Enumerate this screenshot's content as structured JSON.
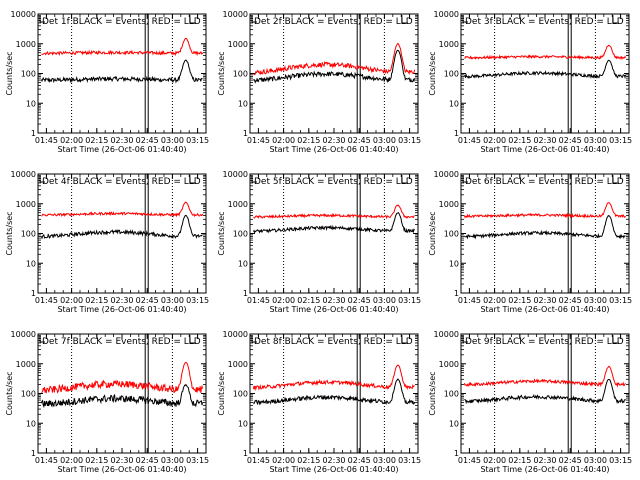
{
  "chart_data": [
    {
      "type": "line",
      "title": "Det 1f BLACK = Events, RED = LLD",
      "xlabel": "Start Time (26-Oct-06 01:40:40)",
      "ylabel": "Counts/sec",
      "yscale": "log",
      "ylim": [
        1,
        10000
      ],
      "xticks": [
        "01:45",
        "02:00",
        "02:15",
        "02:30",
        "02:45",
        "03:00",
        "03:15"
      ],
      "yticks": [
        "1",
        "10",
        "100",
        "1000",
        "10000"
      ],
      "series": [
        {
          "color": "#000000",
          "level": 60,
          "bump": 1.1,
          "peak": 280,
          "noise": 0.07
        },
        {
          "color": "#ff0000",
          "level": 480,
          "bump": 1.06,
          "peak": 1500,
          "noise": 0.05
        }
      ],
      "lines": {
        "dotted": [
          "02:00",
          "03:00"
        ],
        "solid": [
          "02:45"
        ],
        "flare": "03:08"
      }
    },
    {
      "type": "line",
      "title": "Det 2f BLACK = Events, RED = LLD",
      "xlabel": "Start Time (26-Oct-06 01:40:40)",
      "ylabel": "Counts/sec",
      "yscale": "log",
      "ylim": [
        1,
        10000
      ],
      "xticks": [
        "01:45",
        "02:00",
        "02:15",
        "02:30",
        "02:45",
        "03:00",
        "03:15"
      ],
      "yticks": [
        "1",
        "10",
        "100",
        "1000",
        "10000"
      ],
      "series": [
        {
          "color": "#000000",
          "level": 60,
          "bump": 1.6,
          "peak": 600,
          "noise": 0.08
        },
        {
          "color": "#ff0000",
          "level": 110,
          "bump": 1.8,
          "peak": 1000,
          "noise": 0.08
        }
      ],
      "lines": {
        "dotted": [
          "02:00",
          "03:00"
        ],
        "solid": [
          "02:45"
        ],
        "flare": "03:08"
      }
    },
    {
      "type": "line",
      "title": "Det 3f BLACK = Events, RED = LLD",
      "xlabel": "Start Time (26-Oct-06 01:40:40)",
      "ylabel": "Counts/sec",
      "yscale": "log",
      "ylim": [
        1,
        10000
      ],
      "xticks": [
        "01:45",
        "02:00",
        "02:15",
        "02:30",
        "02:45",
        "03:00",
        "03:15"
      ],
      "yticks": [
        "1",
        "10",
        "100",
        "1000",
        "10000"
      ],
      "series": [
        {
          "color": "#000000",
          "level": 80,
          "bump": 1.3,
          "peak": 280,
          "noise": 0.05
        },
        {
          "color": "#ff0000",
          "level": 340,
          "bump": 1.08,
          "peak": 900,
          "noise": 0.04
        }
      ],
      "lines": {
        "dotted": [
          "02:00",
          "03:00"
        ],
        "solid": [
          "02:45"
        ],
        "flare": "03:08"
      }
    },
    {
      "type": "line",
      "title": "Det 4f BLACK = Events, RED = LLD",
      "xlabel": "Start Time (26-Oct-06 01:40:40)",
      "ylabel": "Counts/sec",
      "yscale": "log",
      "ylim": [
        1,
        10000
      ],
      "xticks": [
        "01:45",
        "02:00",
        "02:15",
        "02:30",
        "02:45",
        "03:00",
        "03:15"
      ],
      "yticks": [
        "1",
        "10",
        "100",
        "1000",
        "10000"
      ],
      "series": [
        {
          "color": "#000000",
          "level": 80,
          "bump": 1.4,
          "peak": 400,
          "noise": 0.06
        },
        {
          "color": "#ff0000",
          "level": 420,
          "bump": 1.12,
          "peak": 1100,
          "noise": 0.04
        }
      ],
      "lines": {
        "dotted": [
          "02:00",
          "03:00"
        ],
        "solid": [
          "02:45"
        ],
        "flare": "03:08"
      }
    },
    {
      "type": "line",
      "title": "Det 5f BLACK = Events, RED = LLD",
      "xlabel": "Start Time (26-Oct-06 01:40:40)",
      "ylabel": "Counts/sec",
      "yscale": "log",
      "ylim": [
        1,
        10000
      ],
      "xticks": [
        "01:45",
        "02:00",
        "02:15",
        "02:30",
        "02:45",
        "03:00",
        "03:15"
      ],
      "yticks": [
        "1",
        "10",
        "100",
        "1000",
        "10000"
      ],
      "series": [
        {
          "color": "#000000",
          "level": 120,
          "bump": 1.3,
          "peak": 500,
          "noise": 0.05
        },
        {
          "color": "#ff0000",
          "level": 360,
          "bump": 1.12,
          "peak": 900,
          "noise": 0.04
        }
      ],
      "lines": {
        "dotted": [
          "02:00",
          "03:00"
        ],
        "solid": [
          "02:45"
        ],
        "flare": "03:08"
      }
    },
    {
      "type": "line",
      "title": "Det 6f BLACK = Events, RED = LLD",
      "xlabel": "Start Time (26-Oct-06 01:40:40)",
      "ylabel": "Counts/sec",
      "yscale": "log",
      "ylim": [
        1,
        10000
      ],
      "xticks": [
        "01:45",
        "02:00",
        "02:15",
        "02:30",
        "02:45",
        "03:00",
        "03:15"
      ],
      "yticks": [
        "1",
        "10",
        "100",
        "1000",
        "10000"
      ],
      "series": [
        {
          "color": "#000000",
          "level": 80,
          "bump": 1.3,
          "peak": 400,
          "noise": 0.05
        },
        {
          "color": "#ff0000",
          "level": 380,
          "bump": 1.1,
          "peak": 1100,
          "noise": 0.04
        }
      ],
      "lines": {
        "dotted": [
          "02:00",
          "03:00"
        ],
        "solid": [
          "02:45"
        ],
        "flare": "03:08"
      }
    },
    {
      "type": "line",
      "title": "Det 7f BLACK = Events, RED = LLD",
      "xlabel": "Start Time (26-Oct-06 01:40:40)",
      "ylabel": "Counts/sec",
      "yscale": "log",
      "ylim": [
        1,
        10000
      ],
      "xticks": [
        "01:45",
        "02:00",
        "02:15",
        "02:30",
        "02:45",
        "03:00",
        "03:15"
      ],
      "yticks": [
        "1",
        "10",
        "100",
        "1000",
        "10000"
      ],
      "series": [
        {
          "color": "#000000",
          "level": 45,
          "bump": 1.5,
          "peak": 200,
          "noise": 0.12
        },
        {
          "color": "#ff0000",
          "level": 130,
          "bump": 1.6,
          "peak": 1100,
          "noise": 0.12
        }
      ],
      "lines": {
        "dotted": [
          "02:00",
          "03:00"
        ],
        "solid": [
          "02:45"
        ],
        "flare": "03:08"
      }
    },
    {
      "type": "line",
      "title": "Det 8f BLACK = Events, RED = LLD",
      "xlabel": "Start Time (26-Oct-06 01:40:40)",
      "ylabel": "Counts/sec",
      "yscale": "log",
      "ylim": [
        1,
        10000
      ],
      "xticks": [
        "01:45",
        "02:00",
        "02:15",
        "02:30",
        "02:45",
        "03:00",
        "03:15"
      ],
      "yticks": [
        "1",
        "10",
        "100",
        "1000",
        "10000"
      ],
      "series": [
        {
          "color": "#000000",
          "level": 50,
          "bump": 1.5,
          "peak": 300,
          "noise": 0.07
        },
        {
          "color": "#ff0000",
          "level": 160,
          "bump": 1.5,
          "peak": 900,
          "noise": 0.06
        }
      ],
      "lines": {
        "dotted": [
          "02:00",
          "03:00"
        ],
        "solid": [
          "02:45"
        ],
        "flare": "03:08"
      }
    },
    {
      "type": "line",
      "title": "Det 9f BLACK = Events, RED = LLD",
      "xlabel": "Start Time (26-Oct-06 01:40:40)",
      "ylabel": "Counts/sec",
      "yscale": "log",
      "ylim": [
        1,
        10000
      ],
      "xticks": [
        "01:45",
        "02:00",
        "02:15",
        "02:30",
        "02:45",
        "03:00",
        "03:15"
      ],
      "yticks": [
        "1",
        "10",
        "100",
        "1000",
        "10000"
      ],
      "series": [
        {
          "color": "#000000",
          "level": 55,
          "bump": 1.4,
          "peak": 300,
          "noise": 0.06
        },
        {
          "color": "#ff0000",
          "level": 200,
          "bump": 1.3,
          "peak": 800,
          "noise": 0.05
        }
      ],
      "lines": {
        "dotted": [
          "02:00",
          "03:00"
        ],
        "solid": [
          "02:45"
        ],
        "flare": "03:08"
      }
    }
  ]
}
